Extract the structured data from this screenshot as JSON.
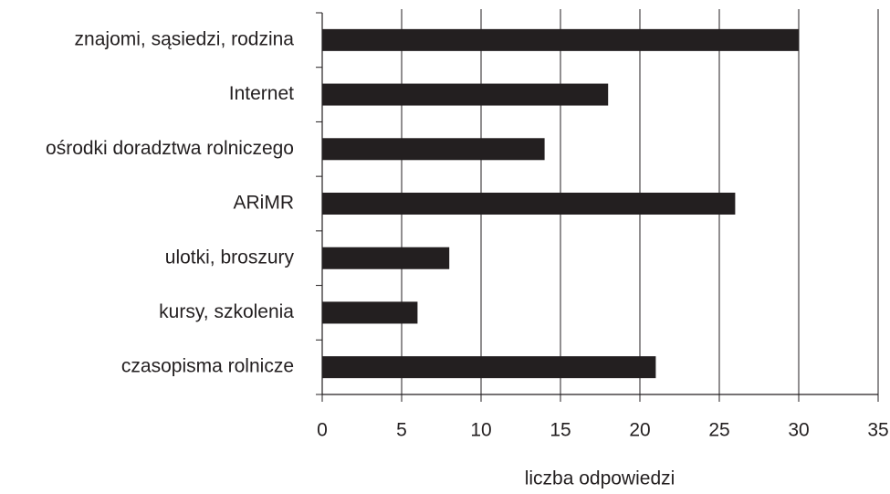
{
  "chart_data": {
    "type": "bar",
    "orientation": "horizontal",
    "categories": [
      "znajomi, sąsiedzi, rodzina",
      "Internet",
      "ośrodki doradztwa rolniczego",
      "ARiMR",
      "ulotki, broszury",
      "kursy, szkolenia",
      "czasopisma rolnicze"
    ],
    "values": [
      30,
      18,
      14,
      26,
      8,
      6,
      21
    ],
    "color": "#231f20",
    "xlabel": "liczba odpowiedzi",
    "xlim": [
      0,
      35
    ],
    "xticks": [
      0,
      5,
      10,
      15,
      20,
      25,
      30,
      35
    ],
    "grid": true
  }
}
